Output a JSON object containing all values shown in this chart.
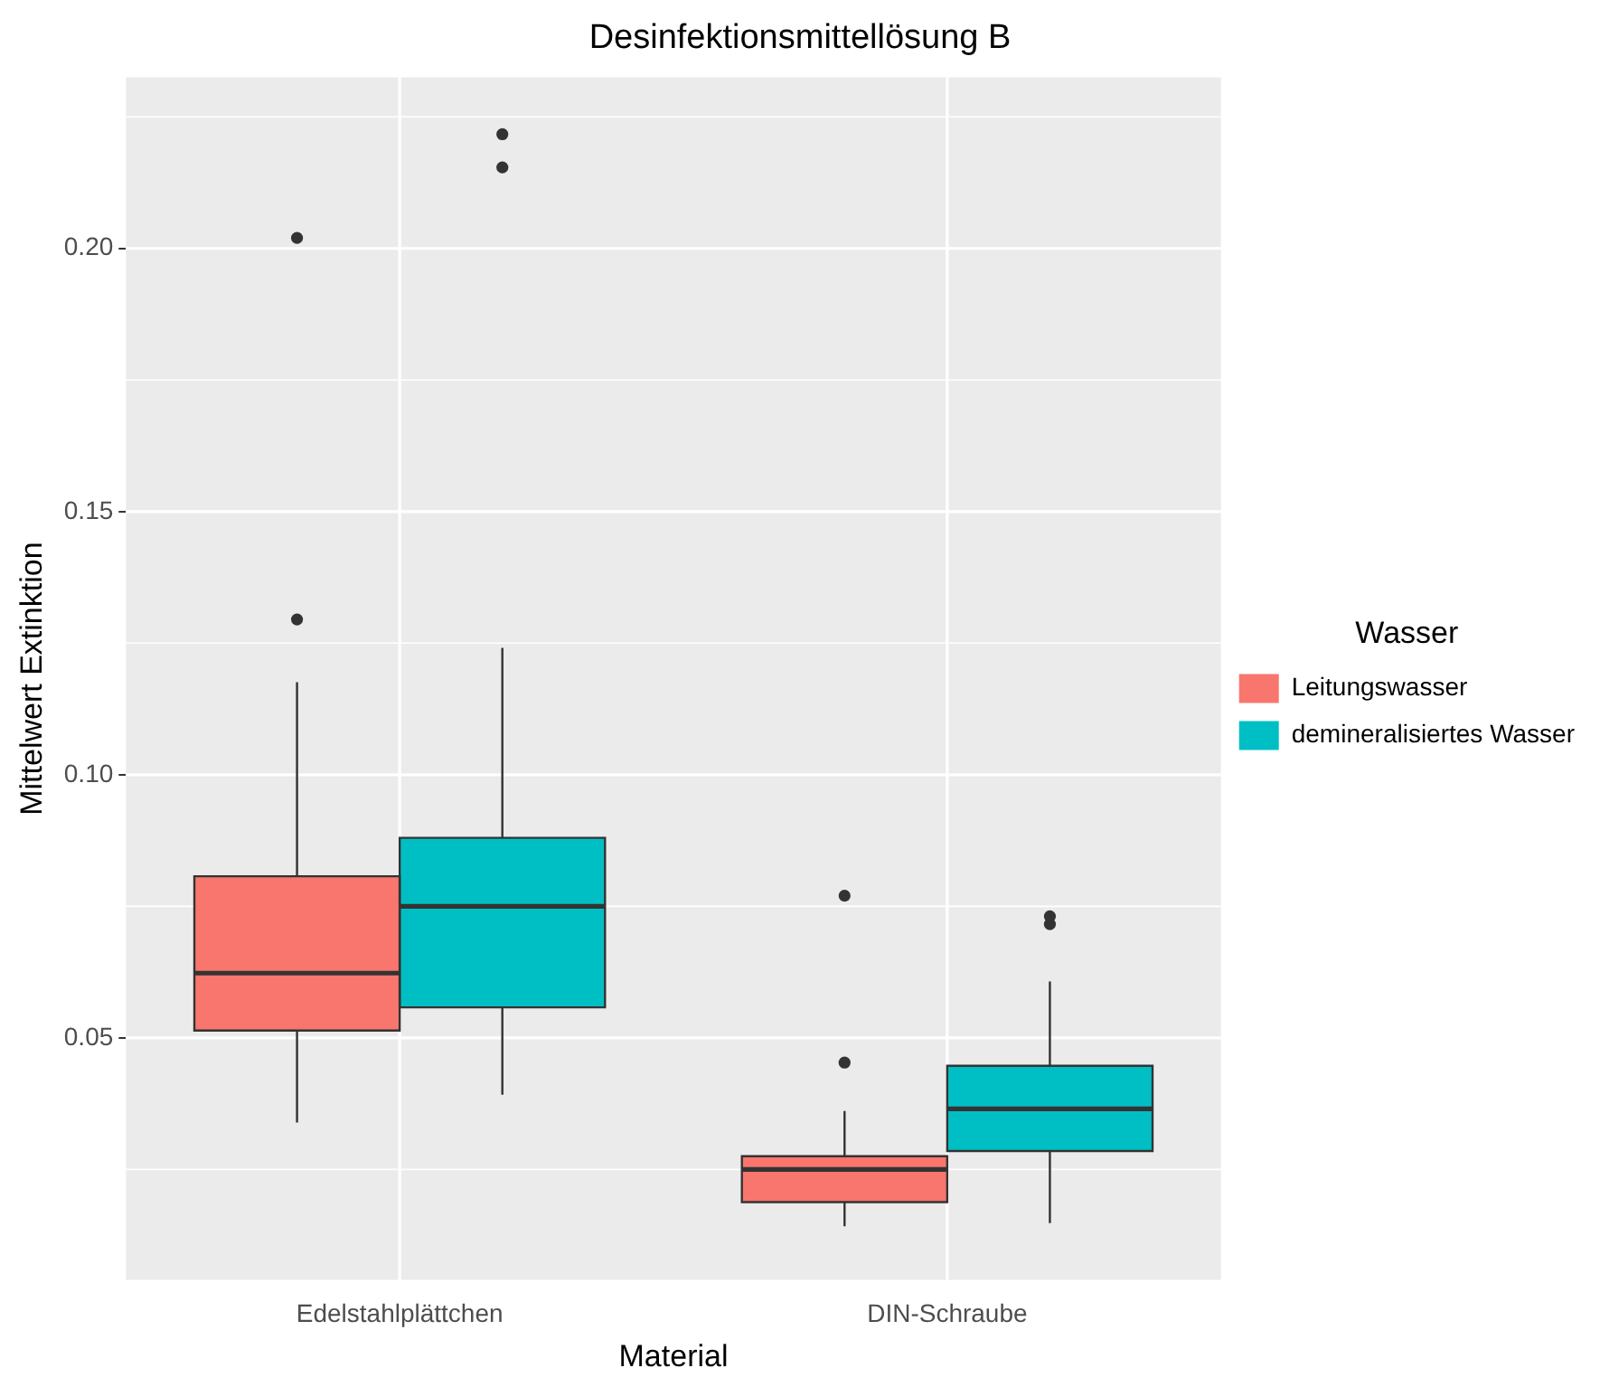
{
  "chart_data": {
    "type": "box",
    "title": "Desinfektionsmittellösung B",
    "xlabel": "Material",
    "ylabel": "Mittelwert Extinktion",
    "legend_title": "Wasser",
    "legend": "right",
    "grid": true,
    "categories": [
      "Edelstahlplättchen",
      "DIN-Schraube"
    ],
    "ylim": [
      0.004,
      0.2325
    ],
    "yticks": [
      {
        "value": 0.025,
        "label": null
      },
      0.05,
      {
        "value": 0.075,
        "label": null
      },
      {
        "value": 0.1,
        "label": "0.10"
      },
      {
        "value": 0.125,
        "label": null
      },
      0.15,
      {
        "value": 0.175,
        "label": null
      },
      {
        "value": 0.2,
        "label": "0.20"
      },
      {
        "value": 0.225,
        "label": null
      }
    ],
    "series": [
      {
        "name": "Leitungswasser",
        "color": "#f8766d",
        "boxes": [
          {
            "low": 0.0339,
            "q1": 0.0514,
            "median": 0.0623,
            "q3": 0.0807,
            "high": 0.1176,
            "outliers": [
              0.1295,
              0.202
            ]
          },
          {
            "low": 0.0142,
            "q1": 0.0188,
            "median": 0.025,
            "q3": 0.0275,
            "high": 0.0361,
            "outliers": [
              0.0453,
              0.077
            ]
          }
        ]
      },
      {
        "name": "demineralisiertes Wasser",
        "color": "#00bfc4",
        "boxes": [
          {
            "low": 0.0392,
            "q1": 0.0558,
            "median": 0.075,
            "q3": 0.088,
            "high": 0.1241,
            "outliers": [
              0.2154,
              0.2217
            ]
          },
          {
            "low": 0.0148,
            "q1": 0.0285,
            "median": 0.0365,
            "q3": 0.0447,
            "high": 0.0607,
            "outliers": [
              0.0716,
              0.0731
            ]
          }
        ]
      }
    ]
  }
}
